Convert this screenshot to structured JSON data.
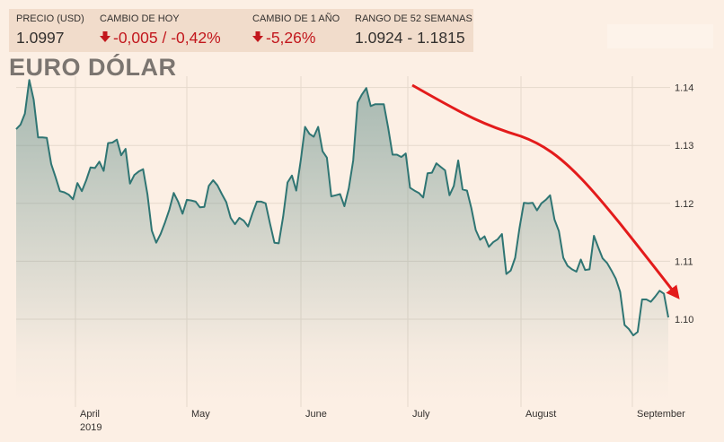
{
  "stats": [
    {
      "label": "PRECIO (USD)",
      "value": "1.0997",
      "negative": false
    },
    {
      "label": "CAMBIO DE HOY",
      "value": "-0,005 / -0,42%",
      "negative": true,
      "icon": "arrow-down-icon"
    },
    {
      "label": "CAMBIO DE 1 AÑO",
      "value": "-5,26%",
      "negative": true,
      "icon": "arrow-down-icon"
    },
    {
      "label": "RANGO DE 52 SEMANAS",
      "value": "1.0924 - 1.1815",
      "negative": false
    }
  ],
  "title": "EURO DÓLAR",
  "colors": {
    "background": "#fcefe4",
    "line": "#2f7573",
    "area": "#5f8b86",
    "trend_arrow": "#e31b1b",
    "negative": "#c2171d"
  },
  "chart_data": {
    "type": "area",
    "y_ticks": [
      "1.14",
      "1.13",
      "1.12",
      "1.11",
      "1.10"
    ],
    "ylim": [
      1.0935,
      1.147
    ],
    "x_labels": [
      "April",
      "May",
      "June",
      "July",
      "August",
      "September"
    ],
    "x_sublabel": "2019",
    "grid": true,
    "annotation": "red downward trend arrow",
    "series": [
      {
        "values": [
          1.1328,
          1.1336,
          1.1355,
          1.1413,
          1.1379,
          1.1314,
          1.1314,
          1.1313,
          1.1268,
          1.1245,
          1.1221,
          1.1219,
          1.1215,
          1.1207,
          1.1235,
          1.1221,
          1.124,
          1.1262,
          1.1261,
          1.1272,
          1.1256,
          1.1304,
          1.1305,
          1.131,
          1.1283,
          1.1294,
          1.1234,
          1.1249,
          1.1255,
          1.1259,
          1.1215,
          1.1153,
          1.1132,
          1.1147,
          1.1167,
          1.1189,
          1.1218,
          1.1203,
          1.1182,
          1.1206,
          1.1205,
          1.1203,
          1.1193,
          1.1194,
          1.123,
          1.124,
          1.1231,
          1.1216,
          1.1202,
          1.1175,
          1.1164,
          1.1175,
          1.117,
          1.116,
          1.1183,
          1.1203,
          1.1203,
          1.12,
          1.1165,
          1.1132,
          1.1131,
          1.1177,
          1.1236,
          1.1248,
          1.1222,
          1.1273,
          1.1332,
          1.132,
          1.1315,
          1.1332,
          1.129,
          1.1279,
          1.1212,
          1.1214,
          1.1216,
          1.1195,
          1.1226,
          1.1274,
          1.1374,
          1.1388,
          1.1399,
          1.1368,
          1.1371,
          1.1371,
          1.1371,
          1.133,
          1.1284,
          1.1284,
          1.128,
          1.1286,
          1.1227,
          1.1222,
          1.1218,
          1.121,
          1.1252,
          1.1253,
          1.1269,
          1.1263,
          1.1257,
          1.1214,
          1.123,
          1.1274,
          1.1224,
          1.1222,
          1.1192,
          1.1154,
          1.1137,
          1.1143,
          1.1125,
          1.1133,
          1.1138,
          1.1147,
          1.1078,
          1.1084,
          1.1106,
          1.1157,
          1.1201,
          1.12,
          1.1201,
          1.1188,
          1.12,
          1.1206,
          1.1214,
          1.1172,
          1.1152,
          1.1106,
          1.1092,
          1.1086,
          1.1082,
          1.1103,
          1.1085,
          1.1086,
          1.1144,
          1.1124,
          1.1105,
          1.1097,
          1.1084,
          1.107,
          1.1047,
          1.099,
          1.0983,
          1.0972,
          1.0978,
          1.1034,
          1.1034,
          1.103,
          1.1039,
          1.1049,
          1.1044,
          1.1003
        ]
      }
    ]
  }
}
